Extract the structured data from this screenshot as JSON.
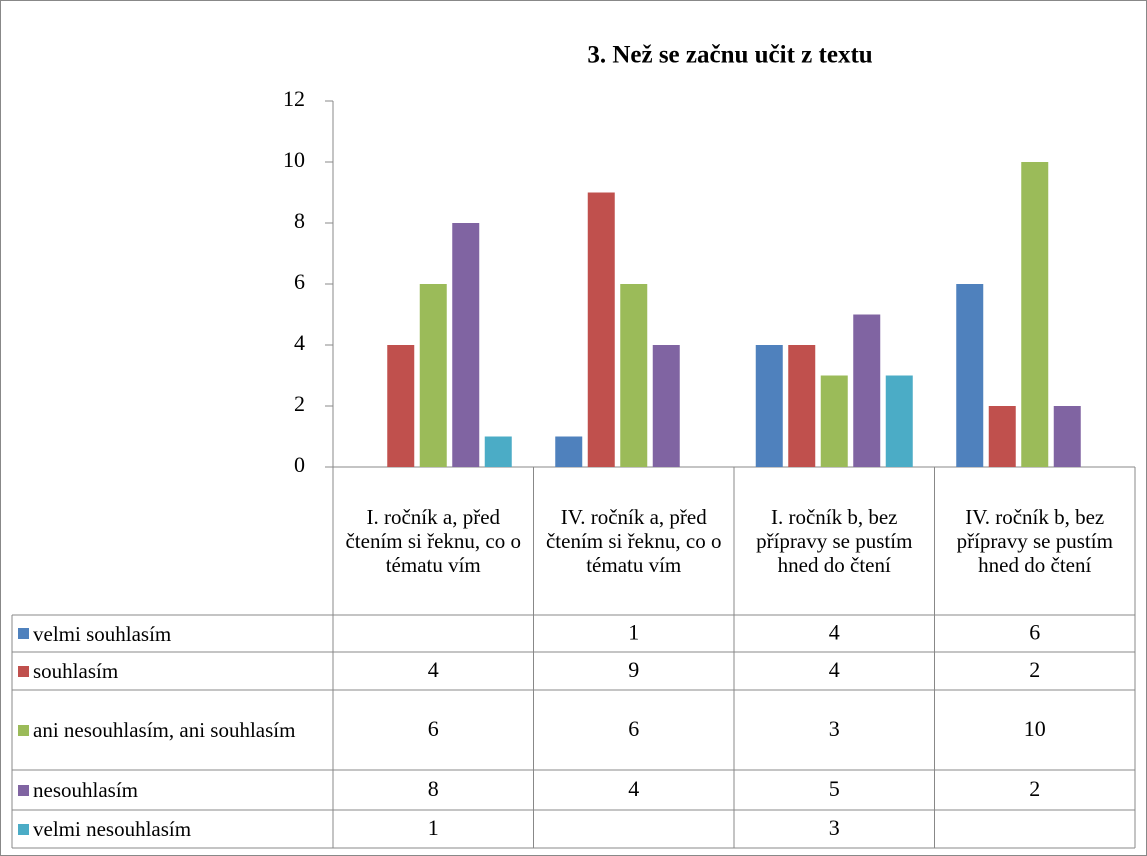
{
  "chart_data": {
    "type": "bar",
    "title": "3. Než se začnu učit z textu",
    "categories": [
      "I. ročník a, před čtením si řeknu, co o tématu vím",
      "IV. ročník a, před čtením si řeknu, co o tématu vím",
      "I. ročník b, bez přípravy se pustím hned do čtení",
      "IV. ročník b, bez přípravy se pustím hned do čtení"
    ],
    "series": [
      {
        "name": "velmi souhlasím",
        "color": "#4f81bd",
        "values": [
          null,
          1,
          4,
          6
        ]
      },
      {
        "name": "souhlasím",
        "color": "#c0504d",
        "values": [
          4,
          9,
          4,
          2
        ]
      },
      {
        "name": "ani nesouhlasím, ani souhlasím",
        "color": "#9bbb59",
        "values": [
          6,
          6,
          3,
          10
        ]
      },
      {
        "name": "nesouhlasím",
        "color": "#8064a2",
        "values": [
          8,
          4,
          5,
          2
        ]
      },
      {
        "name": "velmi nesouhlasím",
        "color": "#4bacc6",
        "values": [
          1,
          null,
          3,
          null
        ]
      }
    ],
    "ylim": [
      0,
      12
    ],
    "yticks": [
      0,
      2,
      4,
      6,
      8,
      10,
      12
    ]
  }
}
